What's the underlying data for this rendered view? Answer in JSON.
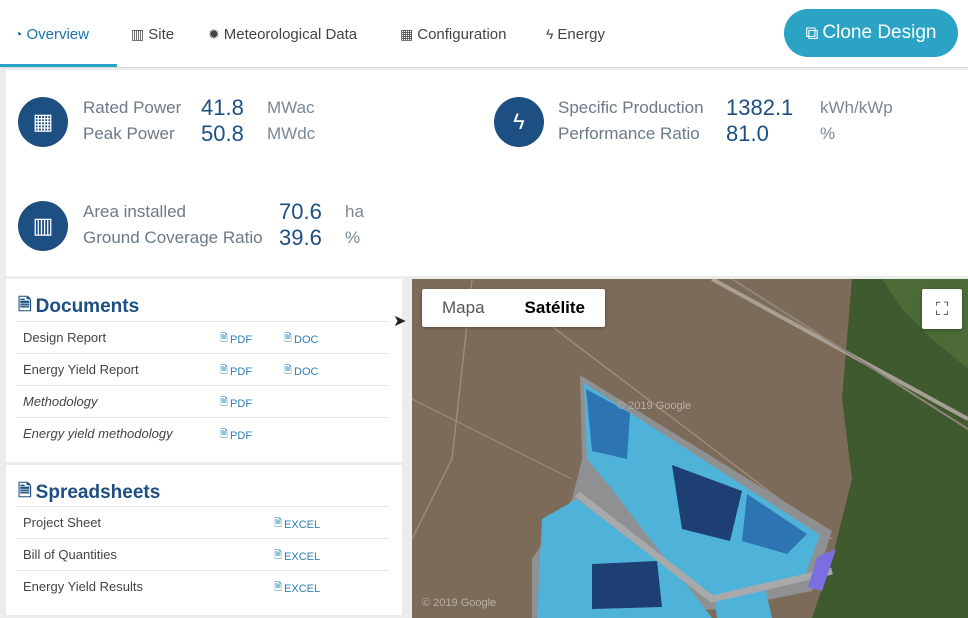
{
  "nav": {
    "tabs": [
      {
        "label": "Overview",
        "icon": "dashboard-icon"
      },
      {
        "label": "Site",
        "icon": "map-icon"
      },
      {
        "label": "Meteorological Data",
        "icon": "sun-icon"
      },
      {
        "label": "Configuration",
        "icon": "grid-icon"
      },
      {
        "label": "Energy",
        "icon": "bolt-icon"
      }
    ],
    "clone_label": "Clone Design"
  },
  "stats": {
    "rated_power": {
      "label": "Rated Power",
      "value": "41.8",
      "unit": "MWac"
    },
    "peak_power": {
      "label": "Peak Power",
      "value": "50.8",
      "unit": "MWdc"
    },
    "specific_production": {
      "label": "Specific Production",
      "value": "1382.1",
      "unit": "kWh/kWp"
    },
    "performance_ratio": {
      "label": "Performance Ratio",
      "value": "81.0",
      "unit": "%"
    },
    "area_installed": {
      "label": "Area installed",
      "value": "70.6",
      "unit": "ha"
    },
    "gcr": {
      "label": "Ground Coverage Ratio",
      "value": "39.6",
      "unit": "%"
    }
  },
  "documents": {
    "title": "Documents",
    "rows": [
      {
        "name": "Design Report",
        "pdf": "PDF",
        "doc": "DOC"
      },
      {
        "name": "Energy Yield Report",
        "pdf": "PDF",
        "doc": "DOC"
      },
      {
        "name": "Methodology",
        "pdf": "PDF"
      },
      {
        "name": "Energy yield methodology",
        "pdf": "PDF"
      }
    ]
  },
  "spreadsheets": {
    "title": "Spreadsheets",
    "rows": [
      {
        "name": "Project Sheet",
        "excel": "EXCEL"
      },
      {
        "name": "Bill of Quantities",
        "excel": "EXCEL"
      },
      {
        "name": "Energy Yield Results",
        "excel": "EXCEL"
      }
    ]
  },
  "map": {
    "type_map": "Mapa",
    "type_satellite": "Satélite",
    "watermark": "© 2019 Google",
    "colors": {
      "light": "#4fb3d9",
      "dark": "#1e3f73",
      "road": "#a7a9ab",
      "substation": "#7b6ee0"
    }
  }
}
